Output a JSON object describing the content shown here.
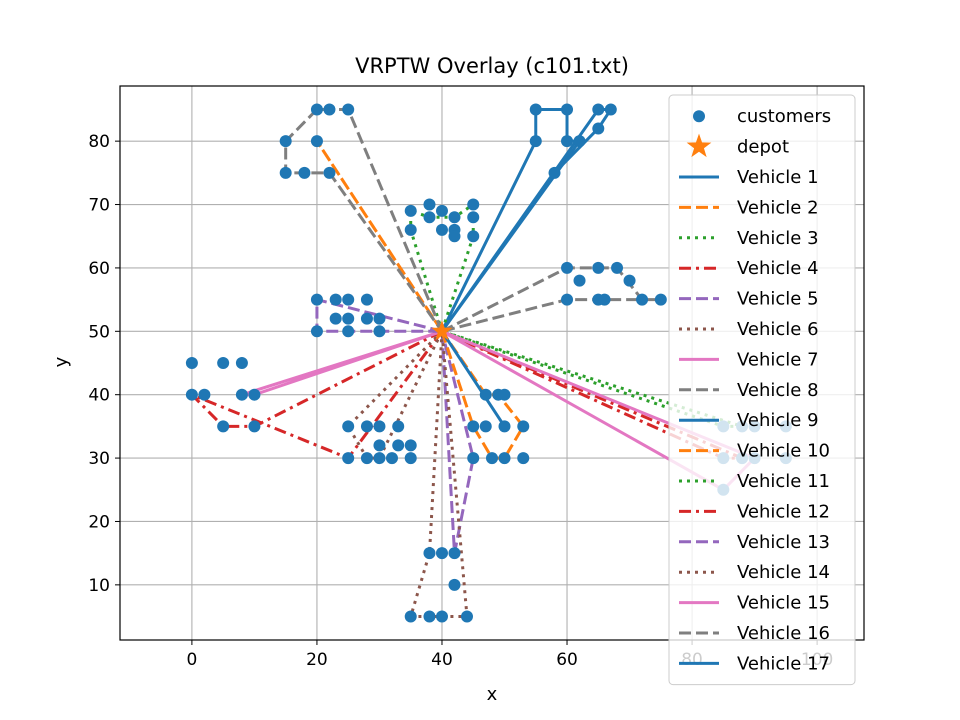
{
  "chart_data": {
    "type": "scatter",
    "title": "VRPTW Overlay (c101.txt)",
    "xlabel": "x",
    "ylabel": "y",
    "xlim": [
      -11.5,
      107.5
    ],
    "ylim": [
      1.3,
      88.7
    ],
    "xticks": [
      "0",
      "20",
      "40",
      "60",
      "80",
      "100"
    ],
    "yticks": [
      "10",
      "20",
      "30",
      "40",
      "50",
      "60",
      "70",
      "80"
    ],
    "grid": true,
    "legend_position": "top-right",
    "depot": {
      "name": "depot",
      "x": 40,
      "y": 50,
      "color": "#ff7f0e",
      "marker": "star"
    },
    "customers": {
      "name": "customers",
      "color": "#1f77b4",
      "points": [
        [
          20,
          85
        ],
        [
          22,
          85
        ],
        [
          25,
          85
        ],
        [
          15,
          80
        ],
        [
          20,
          80
        ],
        [
          15,
          75
        ],
        [
          18,
          75
        ],
        [
          22,
          75
        ],
        [
          35,
          69
        ],
        [
          35,
          66
        ],
        [
          38,
          70
        ],
        [
          38,
          68
        ],
        [
          40,
          69
        ],
        [
          40,
          66
        ],
        [
          42,
          68
        ],
        [
          42,
          66
        ],
        [
          42,
          65
        ],
        [
          45,
          70
        ],
        [
          45,
          68
        ],
        [
          45,
          65
        ],
        [
          55,
          85
        ],
        [
          60,
          85
        ],
        [
          65,
          85
        ],
        [
          67,
          85
        ],
        [
          55,
          80
        ],
        [
          60,
          80
        ],
        [
          62,
          80
        ],
        [
          65,
          82
        ],
        [
          58,
          75
        ],
        [
          60,
          60
        ],
        [
          62,
          58
        ],
        [
          65,
          60
        ],
        [
          68,
          60
        ],
        [
          70,
          58
        ],
        [
          60,
          55
        ],
        [
          65,
          55
        ],
        [
          66,
          55
        ],
        [
          72,
          55
        ],
        [
          75,
          55
        ],
        [
          20,
          55
        ],
        [
          23,
          55
        ],
        [
          25,
          55
        ],
        [
          28,
          55
        ],
        [
          20,
          50
        ],
        [
          25,
          50
        ],
        [
          23,
          52
        ],
        [
          25,
          52
        ],
        [
          28,
          52
        ],
        [
          30,
          52
        ],
        [
          30,
          50
        ],
        [
          0,
          45
        ],
        [
          5,
          45
        ],
        [
          8,
          45
        ],
        [
          0,
          40
        ],
        [
          2,
          40
        ],
        [
          8,
          40
        ],
        [
          10,
          40
        ],
        [
          5,
          35
        ],
        [
          10,
          35
        ],
        [
          25,
          35
        ],
        [
          28,
          35
        ],
        [
          30,
          35
        ],
        [
          33,
          35
        ],
        [
          25,
          30
        ],
        [
          28,
          30
        ],
        [
          30,
          30
        ],
        [
          30,
          32
        ],
        [
          32,
          30
        ],
        [
          33,
          32
        ],
        [
          35,
          32
        ],
        [
          35,
          30
        ],
        [
          47,
          40
        ],
        [
          49,
          40
        ],
        [
          50,
          40
        ],
        [
          45,
          35
        ],
        [
          47,
          35
        ],
        [
          50,
          35
        ],
        [
          53,
          35
        ],
        [
          45,
          30
        ],
        [
          48,
          30
        ],
        [
          50,
          30
        ],
        [
          53,
          30
        ],
        [
          38,
          15
        ],
        [
          40,
          15
        ],
        [
          42,
          15
        ],
        [
          42,
          10
        ],
        [
          35,
          5
        ],
        [
          38,
          5
        ],
        [
          40,
          5
        ],
        [
          44,
          5
        ],
        [
          85,
          35
        ],
        [
          88,
          35
        ],
        [
          90,
          35
        ],
        [
          95,
          35
        ],
        [
          85,
          30
        ],
        [
          88,
          30
        ],
        [
          90,
          30
        ],
        [
          95,
          30
        ],
        [
          85,
          25
        ]
      ]
    },
    "series": [
      {
        "name": "Vehicle 1",
        "color": "#1f77b4",
        "dash": "solid",
        "points": [
          [
            40,
            50
          ],
          [
            55,
            80
          ],
          [
            55,
            85
          ],
          [
            60,
            85
          ],
          [
            60,
            80
          ],
          [
            62,
            80
          ],
          [
            40,
            50
          ]
        ]
      },
      {
        "name": "Vehicle 2",
        "color": "#ff7f0e",
        "dash": "dashed",
        "points": [
          [
            40,
            50
          ],
          [
            20,
            80
          ],
          [
            40,
            50
          ]
        ]
      },
      {
        "name": "Vehicle 3",
        "color": "#2ca02c",
        "dash": "dotted",
        "points": [
          [
            40,
            50
          ],
          [
            35,
            66
          ],
          [
            35,
            69
          ],
          [
            38,
            68
          ],
          [
            42,
            68
          ],
          [
            45,
            70
          ],
          [
            45,
            65
          ],
          [
            40,
            50
          ]
        ]
      },
      {
        "name": "Vehicle 4",
        "color": "#d62728",
        "dash": "dashdot",
        "points": [
          [
            40,
            50
          ],
          [
            25,
            30
          ],
          [
            0,
            40
          ],
          [
            5,
            35
          ],
          [
            10,
            35
          ],
          [
            40,
            50
          ]
        ]
      },
      {
        "name": "Vehicle 5",
        "color": "#9467bd",
        "dash": "dashed",
        "points": [
          [
            40,
            50
          ],
          [
            42,
            15
          ],
          [
            45,
            30
          ],
          [
            40,
            50
          ]
        ]
      },
      {
        "name": "Vehicle 6",
        "color": "#8c564b",
        "dash": "dotted",
        "points": [
          [
            40,
            50
          ],
          [
            38,
            15
          ],
          [
            35,
            5
          ],
          [
            38,
            5
          ],
          [
            40,
            5
          ],
          [
            44,
            5
          ],
          [
            40,
            50
          ]
        ]
      },
      {
        "name": "Vehicle 7",
        "color": "#e377c2",
        "dash": "solid",
        "points": [
          [
            40,
            50
          ],
          [
            8,
            40
          ],
          [
            10,
            40
          ],
          [
            40,
            50
          ]
        ]
      },
      {
        "name": "Vehicle 8",
        "color": "#7f7f7f",
        "dash": "dashed",
        "points": [
          [
            40,
            50
          ],
          [
            60,
            60
          ],
          [
            65,
            60
          ],
          [
            68,
            60
          ],
          [
            72,
            55
          ],
          [
            75,
            55
          ],
          [
            65,
            55
          ],
          [
            60,
            55
          ],
          [
            40,
            50
          ]
        ]
      },
      {
        "name": "Vehicle 9",
        "color": "#1f77b4",
        "dash": "solid",
        "points": [
          [
            40,
            50
          ],
          [
            58,
            75
          ],
          [
            65,
            82
          ],
          [
            67,
            85
          ],
          [
            65,
            85
          ],
          [
            40,
            50
          ]
        ]
      },
      {
        "name": "Vehicle 10",
        "color": "#ff7f0e",
        "dash": "dashed",
        "points": [
          [
            40,
            50
          ],
          [
            45,
            35
          ],
          [
            48,
            30
          ],
          [
            50,
            30
          ],
          [
            53,
            35
          ],
          [
            49,
            40
          ],
          [
            47,
            40
          ],
          [
            40,
            50
          ]
        ]
      },
      {
        "name": "Vehicle 11",
        "color": "#2ca02c",
        "dash": "dotted",
        "points": [
          [
            40,
            50
          ],
          [
            85,
            35
          ],
          [
            88,
            35
          ],
          [
            40,
            50
          ]
        ]
      },
      {
        "name": "Vehicle 12",
        "color": "#d62728",
        "dash": "dashdot",
        "points": [
          [
            40,
            50
          ],
          [
            85,
            30
          ],
          [
            88,
            30
          ],
          [
            40,
            50
          ]
        ]
      },
      {
        "name": "Vehicle 13",
        "color": "#9467bd",
        "dash": "dashed",
        "points": [
          [
            40,
            50
          ],
          [
            20,
            55
          ],
          [
            20,
            50
          ],
          [
            25,
            50
          ],
          [
            40,
            50
          ]
        ]
      },
      {
        "name": "Vehicle 14",
        "color": "#8c564b",
        "dash": "dotted",
        "points": [
          [
            40,
            50
          ],
          [
            25,
            35
          ],
          [
            28,
            30
          ],
          [
            30,
            30
          ],
          [
            40,
            50
          ]
        ]
      },
      {
        "name": "Vehicle 15",
        "color": "#e377c2",
        "dash": "solid",
        "points": [
          [
            40,
            50
          ],
          [
            85,
            25
          ],
          [
            90,
            30
          ],
          [
            40,
            50
          ]
        ]
      },
      {
        "name": "Vehicle 16",
        "color": "#7f7f7f",
        "dash": "dashed",
        "points": [
          [
            40,
            50
          ],
          [
            25,
            85
          ],
          [
            22,
            85
          ],
          [
            20,
            85
          ],
          [
            15,
            80
          ],
          [
            15,
            75
          ],
          [
            18,
            75
          ],
          [
            22,
            75
          ],
          [
            40,
            50
          ]
        ]
      },
      {
        "name": "Vehicle 17",
        "color": "#1f77b4",
        "dash": "solid",
        "points": [
          [
            40,
            50
          ],
          [
            50,
            35
          ],
          [
            40,
            50
          ]
        ]
      }
    ]
  }
}
